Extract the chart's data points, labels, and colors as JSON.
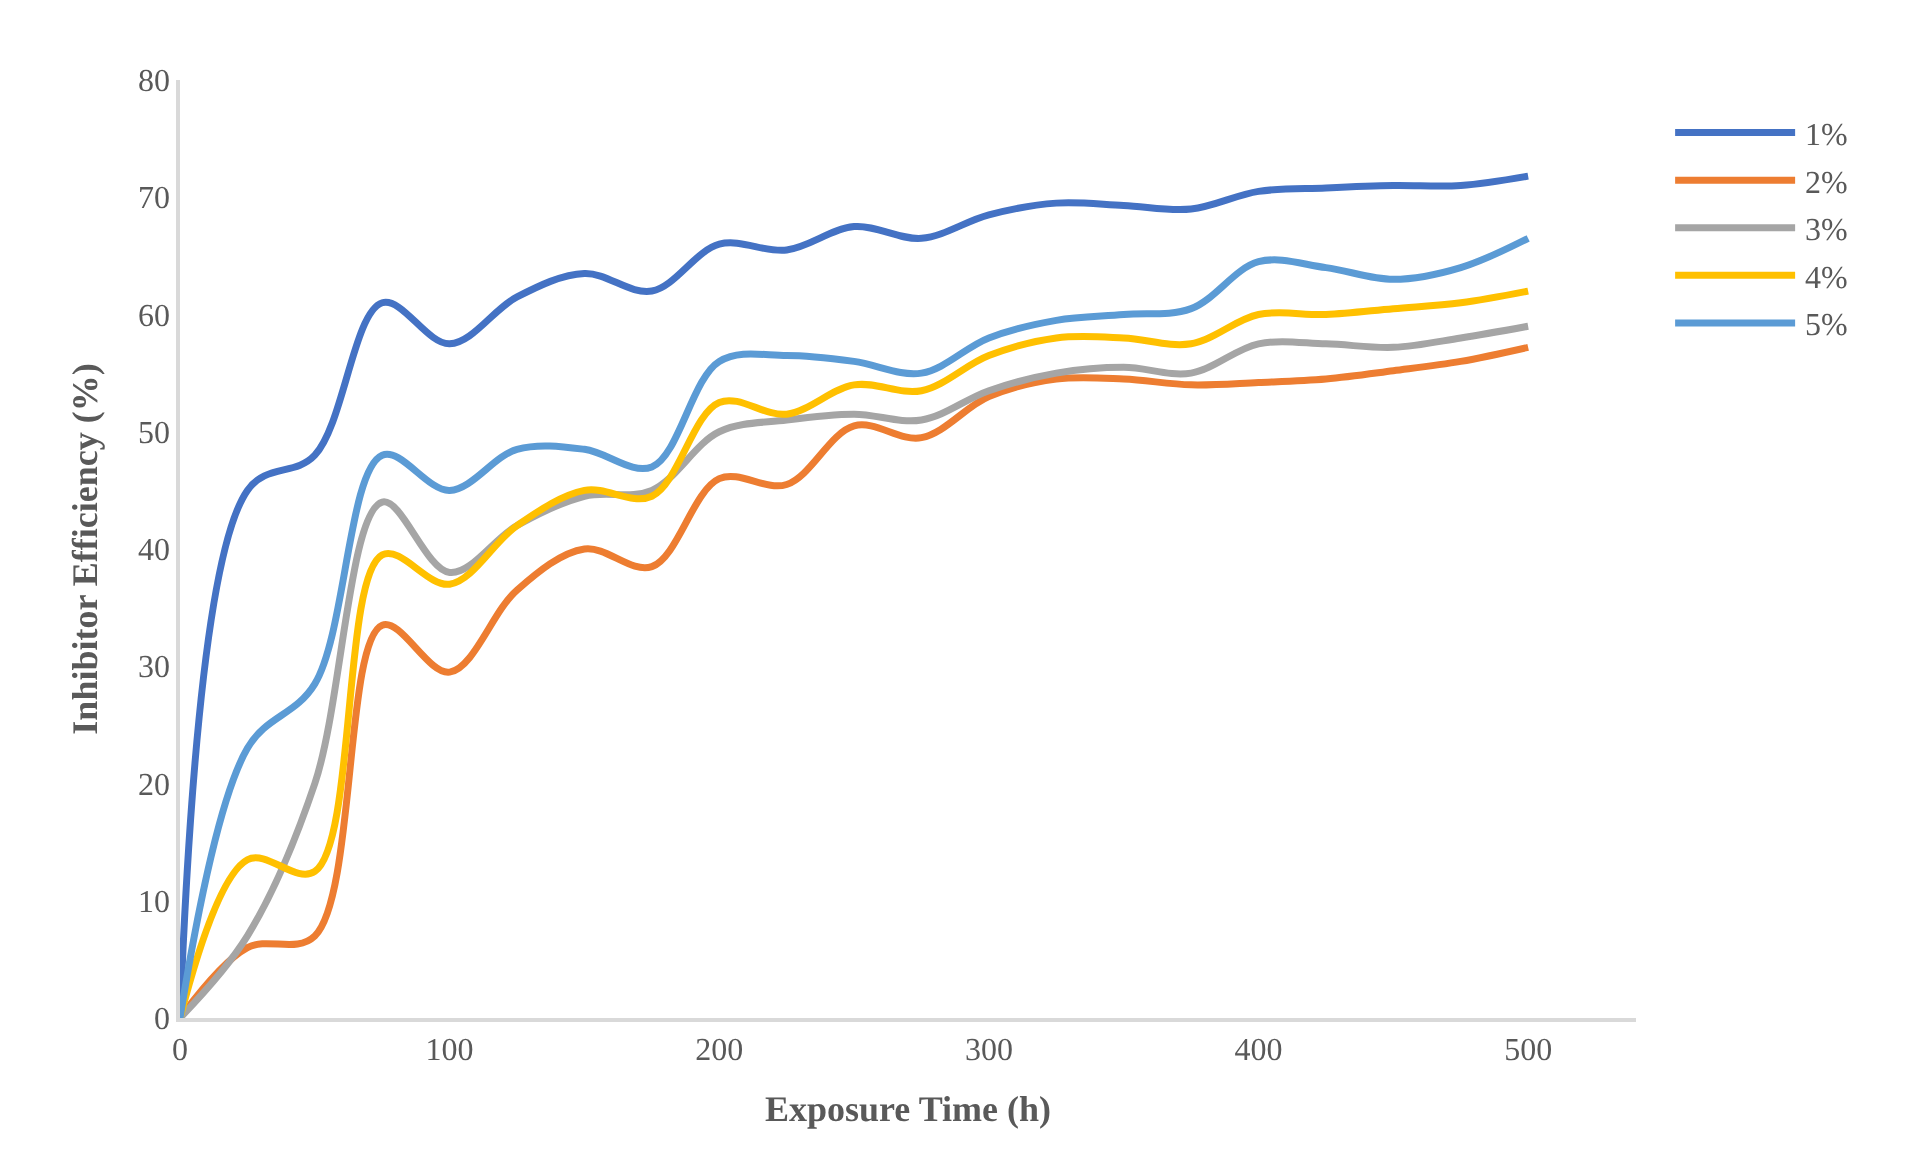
{
  "chart_data": {
    "type": "line",
    "xlabel": "Exposure Time (h)",
    "ylabel": "Inhibitor Efficiency (%)",
    "x": [
      0,
      25,
      50,
      75,
      100,
      125,
      150,
      175,
      200,
      225,
      250,
      275,
      300,
      325,
      350,
      375,
      400,
      425,
      450,
      475,
      500
    ],
    "series": [
      {
        "name": "1%",
        "color": "#4472c4",
        "values": [
          0,
          45,
          48,
          61,
          57.5,
          61.5,
          63.5,
          62,
          66,
          65.5,
          67.5,
          66.5,
          68.5,
          69.5,
          69.3,
          69,
          70.5,
          70.8,
          71,
          71,
          71.8
        ]
      },
      {
        "name": "2%",
        "color": "#ed7d31",
        "values": [
          0,
          6,
          7,
          33.5,
          29.5,
          36.5,
          40,
          38.5,
          46,
          45.5,
          50.5,
          49.5,
          53,
          54.5,
          54.5,
          54,
          54.2,
          54.5,
          55.2,
          56,
          57.2
        ]
      },
      {
        "name": "3%",
        "color": "#a5a5a5",
        "values": [
          0,
          7,
          20,
          44,
          38,
          42,
          44.5,
          45,
          50,
          51,
          51.5,
          51,
          53.5,
          55,
          55.5,
          55,
          57.5,
          57.5,
          57.2,
          58,
          59
        ]
      },
      {
        "name": "4%",
        "color": "#ffc000",
        "values": [
          0,
          13.5,
          12.5,
          39.5,
          37,
          42,
          45,
          44.5,
          52.5,
          51.5,
          54,
          53.5,
          56.5,
          58,
          58,
          57.5,
          60,
          60,
          60.5,
          61,
          62
        ]
      },
      {
        "name": "5%",
        "color": "#5b9bd5",
        "values": [
          0,
          23,
          28.5,
          48,
          45,
          48.5,
          48.5,
          47,
          56,
          56.5,
          56,
          55,
          58,
          59.5,
          60,
          60.5,
          64.5,
          64,
          63,
          64,
          66.5
        ]
      }
    ],
    "xlim": [
      0,
      540
    ],
    "xticks": [
      0,
      100,
      200,
      300,
      400,
      500
    ],
    "ylim": [
      0,
      80
    ],
    "yticks": [
      0,
      10,
      20,
      30,
      40,
      50,
      60,
      70,
      80
    ],
    "grid": false,
    "legend": "top right",
    "marker": "none",
    "line_style": "solid"
  }
}
